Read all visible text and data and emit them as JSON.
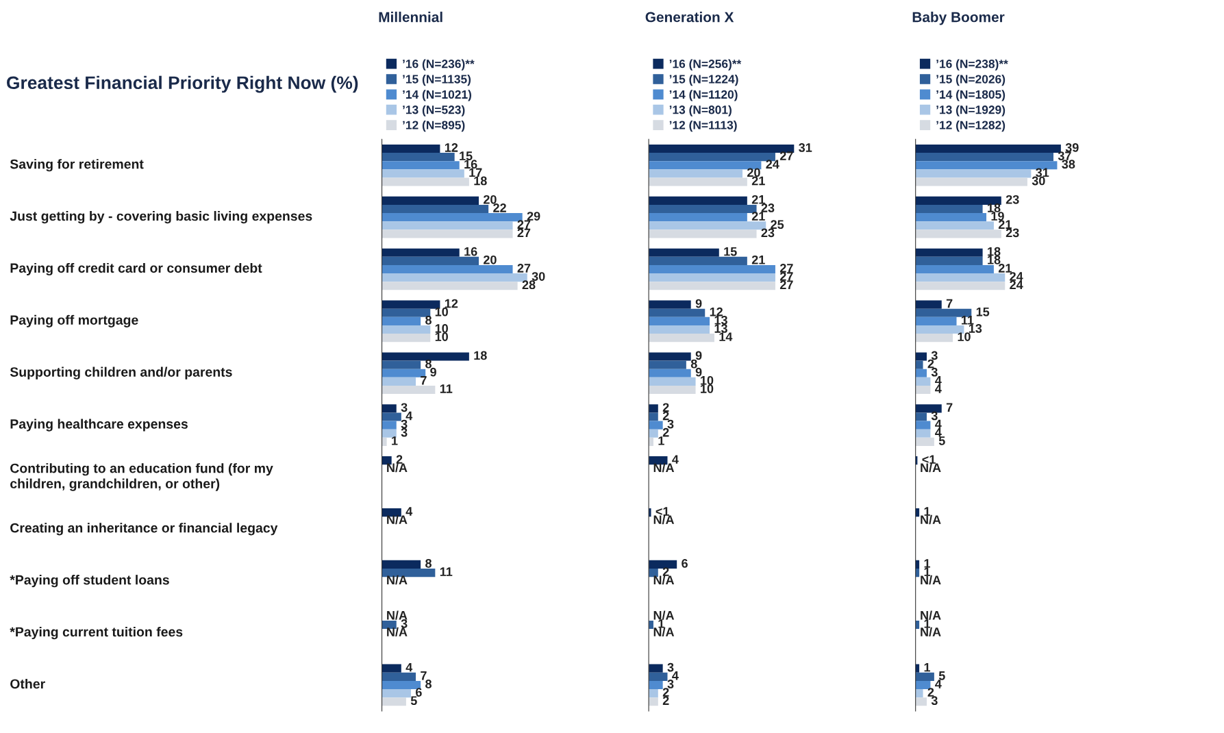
{
  "chart_data": [
    {
      "type": "bar",
      "orientation": "horizontal",
      "title": "Millennial",
      "annotations": [
        "Greatest Financial Priority Right Now (%)"
      ],
      "legend": "top",
      "tick_labels": "y",
      "categories": [
        "Saving for retirement",
        "Just getting by - covering basic living expenses",
        "Paying off credit card or consumer debt",
        "Paying off mortgage",
        "Supporting children and/or parents",
        "Paying healthcare expenses",
        "Contributing to an education fund (for my\nchildren, grandchildren, or other)",
        "Creating an inheritance or financial legacy",
        "*Paying off student loans",
        "*Paying current tuition fees",
        "Other"
      ],
      "series": [
        {
          "name": "’16 (N=236)**",
          "color": "#0b2a5e",
          "values": [
            12,
            20,
            16,
            12,
            18,
            3,
            2,
            4,
            8,
            null,
            4
          ],
          "value_labels": [
            "12",
            "20",
            "16",
            "12",
            "18",
            "3",
            "2",
            "4",
            "8",
            "N/A",
            "4"
          ]
        },
        {
          "name": "’15 (N=1135)",
          "color": "#30609a",
          "values": [
            15,
            22,
            20,
            10,
            8,
            4,
            null,
            null,
            11,
            3,
            7
          ],
          "value_labels": [
            "15",
            "22",
            "20",
            "10",
            "8",
            "4",
            "N/A",
            "N/A",
            "11",
            "3",
            "7"
          ]
        },
        {
          "name": "’14 (N=1021)",
          "color": "#4f8bd0",
          "values": [
            16,
            29,
            27,
            8,
            9,
            3,
            null,
            null,
            null,
            null,
            8
          ],
          "value_labels": [
            "16",
            "29",
            "27",
            "8",
            "9",
            "3",
            null,
            null,
            "N/A",
            "N/A",
            "8"
          ]
        },
        {
          "name": "’13 (N=523)",
          "color": "#a9c6e6",
          "values": [
            17,
            27,
            30,
            10,
            7,
            3,
            null,
            null,
            null,
            null,
            6
          ],
          "value_labels": [
            "17",
            "27",
            "30",
            "10",
            "7",
            "3",
            null,
            null,
            null,
            null,
            "6"
          ]
        },
        {
          "name": "’12 (N=895)",
          "color": "#d6dbe2",
          "values": [
            18,
            27,
            28,
            10,
            11,
            1,
            null,
            null,
            null,
            null,
            5
          ],
          "value_labels": [
            "18",
            "27",
            "28",
            "10",
            "11",
            "1",
            null,
            null,
            null,
            null,
            "5"
          ]
        }
      ]
    },
    {
      "type": "bar",
      "orientation": "horizontal",
      "title": "Generation X",
      "legend": "top",
      "tick_labels": false,
      "series": [
        {
          "name": "’16 (N=256)**",
          "color": "#0b2a5e",
          "values": [
            31,
            21,
            15,
            9,
            9,
            2,
            4,
            0.5,
            6,
            null,
            3
          ],
          "value_labels": [
            "31",
            "21",
            "15",
            "9",
            "9",
            "2",
            "4",
            "<1",
            "6",
            "N/A",
            "3"
          ]
        },
        {
          "name": "’15 (N=1224)",
          "color": "#30609a",
          "values": [
            27,
            23,
            21,
            12,
            8,
            2,
            null,
            null,
            2,
            1,
            4
          ],
          "value_labels": [
            "27",
            "23",
            "21",
            "12",
            "8",
            "2",
            "N/A",
            "N/A",
            "2",
            "1",
            "4"
          ]
        },
        {
          "name": "’14 (N=1120)",
          "color": "#4f8bd0",
          "values": [
            24,
            21,
            27,
            13,
            9,
            3,
            null,
            null,
            null,
            null,
            3
          ],
          "value_labels": [
            "24",
            "21",
            "27",
            "13",
            "9",
            "3",
            null,
            null,
            "N/A",
            "N/A",
            "3"
          ]
        },
        {
          "name": "’13 (N=801)",
          "color": "#a9c6e6",
          "values": [
            20,
            25,
            27,
            13,
            10,
            2,
            null,
            null,
            null,
            null,
            2
          ],
          "value_labels": [
            "20",
            "25",
            "27",
            "13",
            "10",
            "2",
            null,
            null,
            null,
            null,
            "2"
          ]
        },
        {
          "name": "’12 (N=1113)",
          "color": "#d6dbe2",
          "values": [
            21,
            23,
            27,
            14,
            10,
            1,
            null,
            null,
            null,
            null,
            2
          ],
          "value_labels": [
            "21",
            "23",
            "27",
            "14",
            "10",
            "1",
            null,
            null,
            null,
            null,
            "2"
          ]
        }
      ]
    },
    {
      "type": "bar",
      "orientation": "horizontal",
      "title": "Baby Boomer",
      "legend": "top",
      "tick_labels": false,
      "series": [
        {
          "name": "’16 (N=238)**",
          "color": "#0b2a5e",
          "values": [
            39,
            23,
            18,
            7,
            3,
            7,
            0.5,
            1,
            1,
            null,
            1
          ],
          "value_labels": [
            "39",
            "23",
            "18",
            "7",
            "3",
            "7",
            "<1",
            "1",
            "1",
            "N/A",
            "1"
          ]
        },
        {
          "name": "’15 (N=2026)",
          "color": "#30609a",
          "values": [
            37,
            18,
            18,
            15,
            2,
            3,
            null,
            null,
            1,
            1,
            5
          ],
          "value_labels": [
            "37",
            "18",
            "18",
            "15",
            "2",
            "3",
            "N/A",
            "N/A",
            "1",
            "1",
            "5"
          ]
        },
        {
          "name": "’14 (N=1805)",
          "color": "#4f8bd0",
          "values": [
            38,
            19,
            21,
            11,
            3,
            4,
            null,
            null,
            null,
            null,
            4
          ],
          "value_labels": [
            "38",
            "19",
            "21",
            "11",
            "3",
            "4",
            null,
            null,
            "N/A",
            "N/A",
            "4"
          ]
        },
        {
          "name": "’13 (N=1929)",
          "color": "#a9c6e6",
          "values": [
            31,
            21,
            24,
            13,
            4,
            4,
            null,
            null,
            null,
            null,
            2
          ],
          "value_labels": [
            "31",
            "21",
            "24",
            "13",
            "4",
            "4",
            null,
            null,
            null,
            null,
            "2"
          ]
        },
        {
          "name": "’12 (N=1282)",
          "color": "#d6dbe2",
          "values": [
            30,
            23,
            24,
            10,
            4,
            5,
            null,
            null,
            null,
            null,
            3
          ],
          "value_labels": [
            "30",
            "23",
            "24",
            "10",
            "4",
            "5",
            null,
            null,
            null,
            null,
            "3"
          ]
        }
      ]
    }
  ]
}
